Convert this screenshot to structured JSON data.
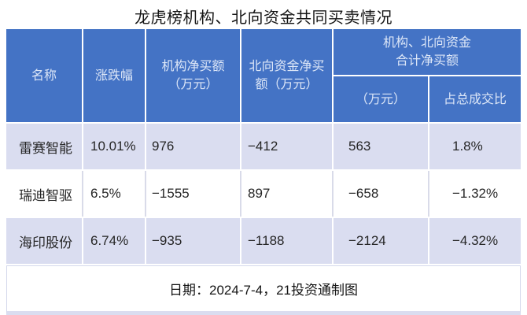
{
  "title": "龙虎榜机构、北向资金共同买卖情况",
  "header": {
    "name": "名称",
    "change": "涨跌幅",
    "inst_net_buy": "机构净买额\n（万元）",
    "north_net_buy": "北向资金净买\n额（万元）",
    "group": "机构、北向资金\n合计净买额",
    "group_sub_amount": "（万元）",
    "group_sub_ratio": "占总成交比"
  },
  "rows": [
    {
      "name": "雷赛智能",
      "change": "10.01%",
      "inst": "976",
      "north": "−412",
      "total": "563",
      "ratio": "1.8%"
    },
    {
      "name": "瑞迪智驱",
      "change": "6.5%",
      "inst": "−1555",
      "north": "897",
      "total": "−658",
      "ratio": "−1.32%"
    },
    {
      "name": "海印股份",
      "change": "6.74%",
      "inst": "−935",
      "north": "−1188",
      "total": "−2124",
      "ratio": "−4.32%"
    }
  ],
  "footer": "日期：2024-7-4，21投资通制图",
  "colors": {
    "header_bg": "#4473C5",
    "header_text": "#DCE6F7",
    "row_alt_bg": "#DADDF0",
    "row_bg": "#FFFFFF",
    "divider": "#D9DBE9",
    "footer_border": "#D4D8EC",
    "text": "#262626"
  },
  "chart_data": {
    "type": "table",
    "title": "龙虎榜机构、北向资金共同买卖情况",
    "columns": [
      "名称",
      "涨跌幅",
      "机构净买额（万元）",
      "北向资金净买额（万元）",
      "机构、北向资金合计净买额（万元）",
      "机构、北向资金合计净买额占总成交比"
    ],
    "rows": [
      [
        "雷赛智能",
        "10.01%",
        976,
        -412,
        563,
        "1.8%"
      ],
      [
        "瑞迪智驱",
        "6.5%",
        -1555,
        897,
        -658,
        "−1.32%"
      ],
      [
        "海印股份",
        "6.74%",
        -935,
        -1188,
        -2124,
        "−4.32%"
      ]
    ],
    "note": "日期：2024-7-4，21投资通制图"
  }
}
